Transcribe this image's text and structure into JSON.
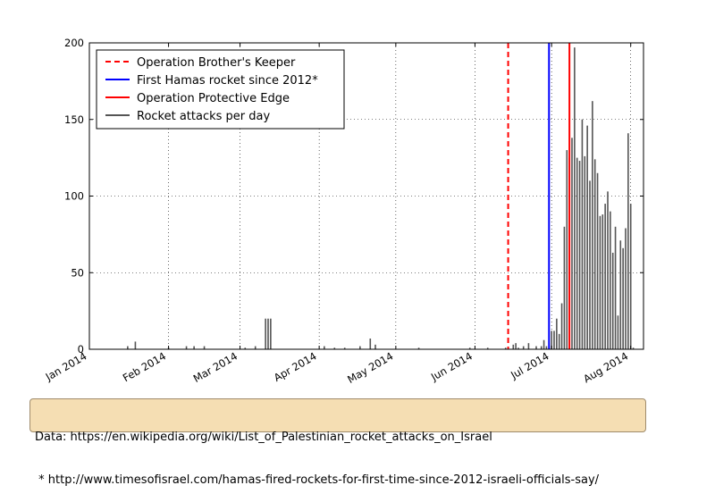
{
  "chart_data": {
    "type": "bar",
    "xlabel": "",
    "ylabel": "",
    "ylim": [
      0,
      200
    ],
    "yticks": [
      0,
      50,
      100,
      150,
      200
    ],
    "xlim": [
      "2014-01-01",
      "2014-08-06"
    ],
    "xticks": [
      {
        "date": "2014-01-01",
        "label": "Jan 2014"
      },
      {
        "date": "2014-02-01",
        "label": "Feb 2014"
      },
      {
        "date": "2014-03-01",
        "label": "Mar 2014"
      },
      {
        "date": "2014-04-01",
        "label": "Apr 2014"
      },
      {
        "date": "2014-05-01",
        "label": "May 2014"
      },
      {
        "date": "2014-06-01",
        "label": "Jun 2014"
      },
      {
        "date": "2014-07-01",
        "label": "Jul 2014"
      },
      {
        "date": "2014-08-01",
        "label": "Aug 2014"
      }
    ],
    "grid": true,
    "legend_position": "top-left",
    "series": [
      {
        "name": "Rocket attacks per day",
        "color": "#555555",
        "dates": [
          "2014-01-16",
          "2014-01-19",
          "2014-02-01",
          "2014-02-08",
          "2014-02-11",
          "2014-02-15",
          "2014-03-03",
          "2014-03-07",
          "2014-03-11",
          "2014-03-12",
          "2014-03-13",
          "2014-04-03",
          "2014-04-07",
          "2014-04-11",
          "2014-04-17",
          "2014-04-21",
          "2014-04-23",
          "2014-05-10",
          "2014-05-30",
          "2014-06-06",
          "2014-06-13",
          "2014-06-16",
          "2014-06-17",
          "2014-06-18",
          "2014-06-20",
          "2014-06-22",
          "2014-06-25",
          "2014-06-27",
          "2014-06-28",
          "2014-06-29",
          "2014-06-30",
          "2014-07-01",
          "2014-07-02",
          "2014-07-03",
          "2014-07-04",
          "2014-07-05",
          "2014-07-06",
          "2014-07-07",
          "2014-07-08",
          "2014-07-09",
          "2014-07-10",
          "2014-07-11",
          "2014-07-12",
          "2014-07-13",
          "2014-07-14",
          "2014-07-15",
          "2014-07-16",
          "2014-07-17",
          "2014-07-18",
          "2014-07-19",
          "2014-07-20",
          "2014-07-21",
          "2014-07-22",
          "2014-07-23",
          "2014-07-24",
          "2014-07-25",
          "2014-07-26",
          "2014-07-27",
          "2014-07-28",
          "2014-07-29",
          "2014-07-30",
          "2014-07-31",
          "2014-08-01",
          "2014-08-02"
        ],
        "values": [
          2,
          5,
          1,
          2,
          2,
          2,
          1,
          2,
          20,
          20,
          20,
          2,
          1,
          1,
          2,
          7,
          3,
          1,
          1,
          1,
          1,
          3,
          4,
          1,
          2,
          4,
          2,
          2,
          6,
          2,
          4,
          12,
          12,
          20,
          10,
          30,
          80,
          130,
          125,
          138,
          197,
          125,
          123,
          150,
          126,
          146,
          110,
          162,
          124,
          115,
          87,
          88,
          95,
          103,
          90,
          63,
          80,
          22,
          71,
          66,
          79,
          141,
          95,
          1
        ]
      }
    ],
    "vlines": [
      {
        "name": "Operation Brother's Keeper",
        "date": "2014-06-14",
        "color": "#ff0000",
        "style": "dashed"
      },
      {
        "name": "First Hamas rocket since 2012*",
        "date": "2014-06-30",
        "color": "#0000ff",
        "style": "solid"
      },
      {
        "name": "Operation Protective Edge",
        "date": "2014-07-08",
        "color": "#ff0000",
        "style": "solid"
      }
    ],
    "legend": [
      {
        "label": "Operation Brother's Keeper",
        "color": "#ff0000",
        "style": "dashed"
      },
      {
        "label": "First Hamas rocket since 2012*",
        "color": "#0000ff",
        "style": "solid"
      },
      {
        "label": "Operation Protective Edge",
        "color": "#ff0000",
        "style": "solid"
      },
      {
        "label": "Rocket attacks per day",
        "color": "#555555",
        "style": "solid"
      }
    ]
  },
  "footnote": {
    "line1": "Data: https://en.wikipedia.org/wiki/List_of_Palestinian_rocket_attacks_on_Israel",
    "line2": " * http://www.timesofisrael.com/hamas-fired-rockets-for-first-time-since-2012-israeli-officials-say/"
  }
}
